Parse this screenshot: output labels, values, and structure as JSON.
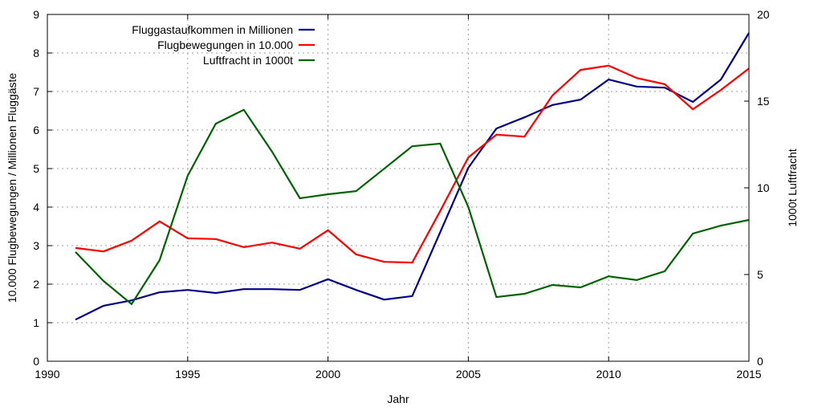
{
  "chart_data": {
    "type": "line",
    "title": "",
    "xlabel": "Jahr",
    "ylabel": "10.000 Flugbewegungen / Millionen Fluggäste",
    "y2label": "1000t Luftfracht",
    "xlim": [
      1990,
      2015
    ],
    "ylim": [
      0,
      9
    ],
    "y2lim": [
      0,
      20
    ],
    "xticks": [
      1990,
      1995,
      2000,
      2005,
      2010,
      2015
    ],
    "yticks": [
      0,
      1,
      2,
      3,
      4,
      5,
      6,
      7,
      8,
      9
    ],
    "y2ticks": [
      0,
      5,
      10,
      15,
      20
    ],
    "grid": true,
    "legend_position": "top-left",
    "x": [
      1991,
      1992,
      1993,
      1994,
      1995,
      1996,
      1997,
      1998,
      1999,
      2000,
      2001,
      2002,
      2003,
      2004,
      2005,
      2006,
      2007,
      2008,
      2009,
      2010,
      2011,
      2012,
      2013,
      2014,
      2015
    ],
    "series": [
      {
        "name": "Fluggastaufkommen in Millionen",
        "axis": "left",
        "color": "#00008b",
        "values": [
          1.08,
          1.44,
          1.58,
          1.79,
          1.85,
          1.77,
          1.87,
          1.87,
          1.85,
          2.13,
          1.85,
          1.6,
          1.69,
          3.35,
          5.02,
          6.04,
          6.33,
          6.65,
          6.79,
          7.31,
          7.13,
          7.1,
          6.73,
          7.31,
          8.52
        ]
      },
      {
        "name": "Flugbewegungen in 10.000",
        "axis": "left",
        "color": "#ff0000",
        "values": [
          2.94,
          2.85,
          3.13,
          3.63,
          3.19,
          3.17,
          2.96,
          3.08,
          2.92,
          3.4,
          2.77,
          2.58,
          2.56,
          3.9,
          5.29,
          5.88,
          5.83,
          6.9,
          7.56,
          7.67,
          7.35,
          7.19,
          6.54,
          7.04,
          7.6
        ]
      },
      {
        "name": "Luftfracht in 1000t",
        "axis": "right",
        "color": "#006400",
        "values": [
          6.3,
          4.63,
          3.29,
          5.83,
          10.7,
          13.7,
          14.5,
          12.1,
          9.4,
          9.63,
          9.81,
          11.1,
          12.4,
          12.55,
          8.9,
          3.7,
          3.89,
          4.4,
          4.26,
          4.9,
          4.68,
          5.19,
          7.36,
          7.82,
          8.15
        ]
      }
    ]
  }
}
